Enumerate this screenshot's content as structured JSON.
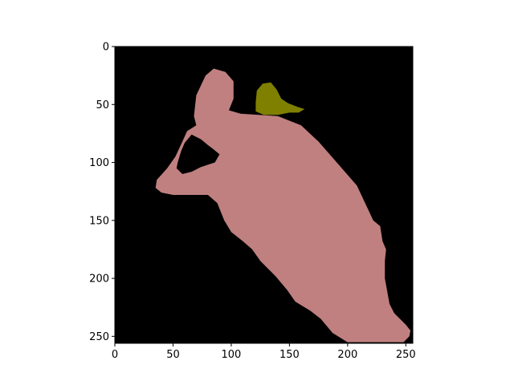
{
  "chart_data": {
    "type": "image",
    "xlim": [
      0,
      256
    ],
    "ylim": [
      256,
      0
    ],
    "x_ticks": [
      0,
      50,
      100,
      150,
      200,
      250
    ],
    "y_ticks": [
      0,
      50,
      100,
      150,
      200,
      250
    ],
    "x_tick_labels": [
      "0",
      "50",
      "100",
      "150",
      "200",
      "250"
    ],
    "y_tick_labels": [
      "0",
      "50",
      "100",
      "150",
      "200",
      "250"
    ],
    "grid": false,
    "legend": "none",
    "background_color": "#000000",
    "regions": [
      {
        "class_color": "#c08080",
        "polygon": [
          [
            85,
            19
          ],
          [
            95,
            22
          ],
          [
            102,
            30
          ],
          [
            102,
            45
          ],
          [
            98,
            55
          ],
          [
            108,
            58
          ],
          [
            140,
            60
          ],
          [
            160,
            68
          ],
          [
            175,
            82
          ],
          [
            195,
            105
          ],
          [
            208,
            120
          ],
          [
            215,
            135
          ],
          [
            222,
            150
          ],
          [
            228,
            155
          ],
          [
            230,
            168
          ],
          [
            233,
            175
          ],
          [
            232,
            185
          ],
          [
            232,
            200
          ],
          [
            236,
            222
          ],
          [
            240,
            230
          ],
          [
            250,
            240
          ],
          [
            254,
            245
          ],
          [
            253,
            250
          ],
          [
            248,
            255
          ],
          [
            225,
            255
          ],
          [
            210,
            255
          ],
          [
            200,
            255
          ],
          [
            195,
            252
          ],
          [
            187,
            247
          ],
          [
            177,
            235
          ],
          [
            168,
            228
          ],
          [
            155,
            220
          ],
          [
            148,
            210
          ],
          [
            138,
            198
          ],
          [
            125,
            185
          ],
          [
            118,
            175
          ],
          [
            110,
            168
          ],
          [
            100,
            160
          ],
          [
            94,
            150
          ],
          [
            88,
            135
          ],
          [
            80,
            128
          ],
          [
            50,
            128
          ],
          [
            40,
            126
          ],
          [
            35,
            122
          ],
          [
            36,
            115
          ],
          [
            45,
            105
          ],
          [
            52,
            95
          ],
          [
            58,
            82
          ],
          [
            62,
            73
          ],
          [
            70,
            68
          ],
          [
            68,
            60
          ],
          [
            70,
            42
          ],
          [
            78,
            25
          ]
        ],
        "holes": [
          [
            [
              66,
              76
            ],
            [
              74,
              80
            ],
            [
              80,
              85
            ],
            [
              84,
              88
            ],
            [
              90,
              93
            ],
            [
              86,
              100
            ],
            [
              74,
              104
            ],
            [
              66,
              108
            ],
            [
              58,
              110
            ],
            [
              53,
              105
            ],
            [
              54,
              100
            ],
            [
              57,
              90
            ],
            [
              60,
              83
            ]
          ]
        ]
      },
      {
        "class_color": "#808000",
        "polygon": [
          [
            127,
            32
          ],
          [
            134,
            31
          ],
          [
            139,
            37
          ],
          [
            143,
            45
          ],
          [
            149,
            49
          ],
          [
            157,
            52
          ],
          [
            163,
            54
          ],
          [
            158,
            57
          ],
          [
            150,
            57
          ],
          [
            140,
            59
          ],
          [
            128,
            59
          ],
          [
            121,
            56
          ],
          [
            121,
            48
          ],
          [
            122,
            38
          ]
        ]
      }
    ]
  }
}
